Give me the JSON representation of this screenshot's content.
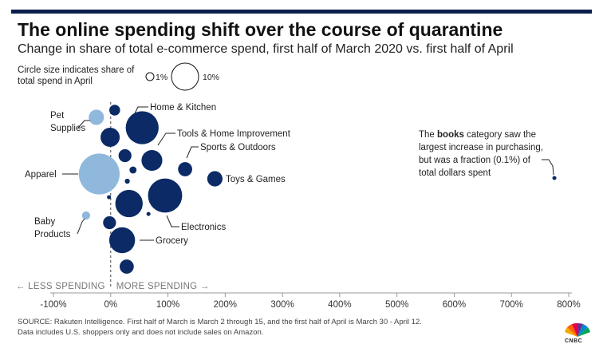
{
  "header": {
    "title": "The online spending shift over the course of quarantine",
    "subtitle": "Change in share of total e-commerce spend, first half of March 2020 vs. first half of April"
  },
  "size_legend": {
    "note": "Circle size indicates share of total spend in April",
    "small_label": "1%",
    "large_label": "10%"
  },
  "direction": {
    "less": "← LESS SPENDING",
    "more": "MORE SPENDING →"
  },
  "annotation": {
    "line1_pre": "The ",
    "line1_bold": "books",
    "line1_post": " category saw the",
    "line2": "largest increase in purchasing,",
    "line3": "but was a fraction (0.1%) of",
    "line4": "total dollars spent"
  },
  "source": {
    "line1": "SOURCE: Rakuten Intelligence. First half of March is March 2 through 15, and the first half of April is March 30 - April 12.",
    "line2": "Data includes U.S. shoppers only and does not include sales on Amazon."
  },
  "logo": {
    "text": "CNBC"
  },
  "colors": {
    "dark": "#0b2a66",
    "light": "#8fb8dc",
    "axis": "#555555",
    "bar": "#0b1f4d"
  },
  "chart_data": {
    "type": "scatter",
    "x_unit": "percent change",
    "xlim": [
      -100,
      800
    ],
    "x_ticks": [
      "-100%",
      "0%",
      "100%",
      "200%",
      "300%",
      "400%",
      "500%",
      "600%",
      "700%",
      "800%"
    ],
    "size_unit": "share of total spend in April (%)",
    "points": [
      {
        "name": "Pet Supplies",
        "label": "Pet\nSupplies",
        "x": -25,
        "size": 1.4,
        "color": "light",
        "labeled": true
      },
      {
        "name": "",
        "label": "",
        "x": 7,
        "size": 0.7,
        "color": "dark",
        "labeled": false
      },
      {
        "name": "Home & Kitchen",
        "label": "Home & Kitchen",
        "x": 55,
        "size": 6.5,
        "color": "dark",
        "labeled": true
      },
      {
        "name": "",
        "label": "",
        "x": -1,
        "size": 2.2,
        "color": "dark",
        "labeled": false
      },
      {
        "name": "Tools & Home Improvement",
        "label": "Tools & Home Improvement",
        "x": 72,
        "size": 2.6,
        "color": "dark",
        "labeled": true
      },
      {
        "name": "",
        "label": "",
        "x": 25,
        "size": 1.0,
        "color": "dark",
        "labeled": false
      },
      {
        "name": "Sports & Outdoors",
        "label": "Sports & Outdoors",
        "x": 130,
        "size": 1.2,
        "color": "dark",
        "labeled": true
      },
      {
        "name": "",
        "label": "",
        "x": 39,
        "size": 0.3,
        "color": "dark",
        "labeled": false
      },
      {
        "name": "Apparel",
        "label": "Apparel",
        "x": -20,
        "size": 10.0,
        "color": "light",
        "labeled": true
      },
      {
        "name": "Toys & Games",
        "label": "Toys & Games",
        "x": 182,
        "size": 1.4,
        "color": "dark",
        "labeled": true
      },
      {
        "name": "",
        "label": "",
        "x": 29,
        "size": 0.15,
        "color": "dark",
        "labeled": false
      },
      {
        "name": "Electronics",
        "label": "Electronics",
        "x": 95,
        "size": 7.0,
        "color": "dark",
        "labeled": true
      },
      {
        "name": "",
        "label": "",
        "x": 32,
        "size": 4.5,
        "color": "dark",
        "labeled": false
      },
      {
        "name": "",
        "label": "",
        "x": -3,
        "size": 0.1,
        "color": "dark",
        "labeled": false
      },
      {
        "name": "",
        "label": "",
        "x": 66,
        "size": 0.1,
        "color": "dark",
        "labeled": false
      },
      {
        "name": "Baby Products",
        "label": "Baby\nProducts",
        "x": -43,
        "size": 0.4,
        "color": "light",
        "labeled": true
      },
      {
        "name": "",
        "label": "",
        "x": -2,
        "size": 1.0,
        "color": "dark",
        "labeled": false
      },
      {
        "name": "Grocery",
        "label": "Grocery",
        "x": 20,
        "size": 4.0,
        "color": "dark",
        "labeled": true
      },
      {
        "name": "",
        "label": "",
        "x": 28,
        "size": 1.2,
        "color": "dark",
        "labeled": false
      },
      {
        "name": "Books",
        "label": "",
        "x": 775,
        "size": 0.1,
        "color": "dark",
        "labeled": false
      }
    ]
  }
}
